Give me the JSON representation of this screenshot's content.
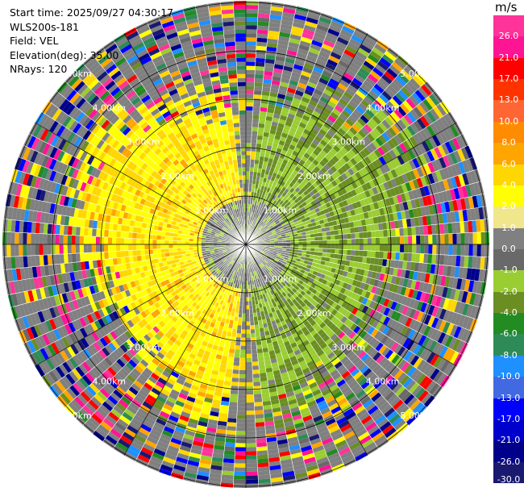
{
  "info": {
    "start_time": "Start time: 2025/09/27 04:30:17",
    "station": "WLS200s-181",
    "field": "Field: VEL",
    "elevation": "Elevation(deg): 35.00",
    "nrays": "NRays: 120"
  },
  "colorbar": {
    "unit": "m/s",
    "labels": [
      "26.0",
      "21.0",
      "17.0",
      "13.0",
      "10.0",
      "8.0",
      "6.0",
      "4.0",
      "2.0",
      "1.0",
      "0.0",
      "-1.0",
      "-2.0",
      "-4.0",
      "-6.0",
      "-8.0",
      "-10.0",
      "-13.0",
      "-17.0",
      "-21.0",
      "-26.0",
      "-30.0"
    ],
    "colors": [
      "#ff3399",
      "#ff1493",
      "#ff0000",
      "#ff3300",
      "#ff6633",
      "#ff8c00",
      "#ffa500",
      "#ffd700",
      "#ffff00",
      "#f0e68c",
      "#808080",
      "#696969",
      "#9acd32",
      "#6b8e23",
      "#228b22",
      "#2e8b57",
      "#1e90ff",
      "#4169e1",
      "#0000ff",
      "#0000cd",
      "#00008b",
      "#191970"
    ]
  },
  "rings": {
    "labels": [
      "1.00km",
      "2.00km",
      "3.00km",
      "4.00km",
      "5.00km"
    ]
  }
}
